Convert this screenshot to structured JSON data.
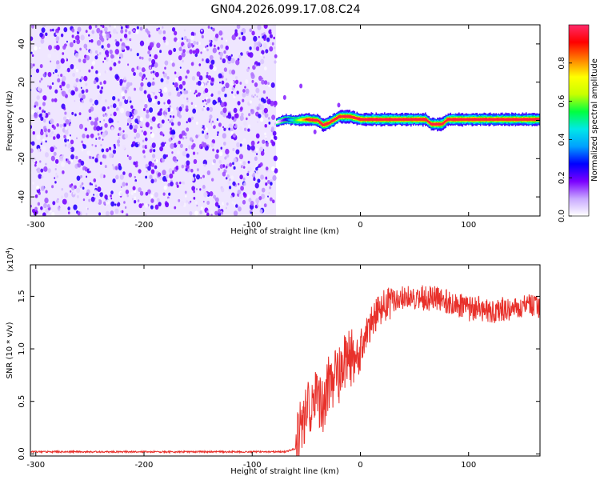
{
  "title": "GN04.2026.099.17.08.C24",
  "chart_data": [
    {
      "type": "heatmap",
      "xlabel": "Height of straight line (km)",
      "ylabel": "Frequency (Hz)",
      "xlim": [
        -305,
        166
      ],
      "ylim": [
        -50,
        50
      ],
      "xticks": [
        -300,
        -200,
        -100,
        0,
        100
      ],
      "xtick_labels": [
        "-300",
        "-200",
        "-100",
        "0",
        "100"
      ],
      "yticks": [
        -40,
        -20,
        0,
        20,
        40
      ],
      "ytick_labels": [
        "-40",
        "-20",
        "0",
        "20",
        "40"
      ],
      "colorbar": {
        "label": "Normalized spectral amplitude",
        "range": [
          0,
          1
        ],
        "ticks": [
          0.0,
          0.2,
          0.4,
          0.6,
          0.8
        ],
        "tick_labels": [
          "0.0",
          "0.2",
          "0.4",
          "0.6",
          "0.8"
        ],
        "colormap": [
          "#ffffff",
          "#c8a8ff",
          "#7a00ff",
          "#0000ff",
          "#00a0ff",
          "#00e8e8",
          "#00ff40",
          "#c8ff00",
          "#ffff00",
          "#ff8000",
          "#ff0000",
          "#ff2a6a"
        ]
      },
      "noise_region": {
        "x": [
          -305,
          -78
        ],
        "freq": [
          -50,
          50
        ],
        "amplitude": [
          0.0,
          0.25
        ]
      },
      "signal_track": {
        "x": [
          -78,
          -70,
          -60,
          -50,
          -40,
          -35,
          -30,
          -20,
          -10,
          0,
          20,
          40,
          60,
          65,
          75,
          80,
          100,
          120,
          140,
          166
        ],
        "freq": [
          -1,
          0.5,
          0,
          0.5,
          0,
          -2.5,
          -1.5,
          2,
          2,
          0.5,
          0.5,
          0.5,
          0.5,
          -2,
          -2,
          0.5,
          0.5,
          0.5,
          0.5,
          0.5
        ]
      },
      "grid": false
    },
    {
      "type": "line",
      "xlabel": "Height of straight line (km)",
      "ylabel": "SNR (10 * v/v)",
      "y_multiplier": "(x10^4)",
      "xlim": [
        -305,
        166
      ],
      "ylim": [
        -0.02,
        1.8
      ],
      "xticks": [
        -300,
        -200,
        -100,
        0,
        100
      ],
      "xtick_labels": [
        "-300",
        "-200",
        "-100",
        "0",
        "100"
      ],
      "yticks": [
        0.0,
        0.5,
        1.0,
        1.5
      ],
      "ytick_labels": [
        "0.0",
        "0.5",
        "1.0",
        "1.5"
      ],
      "color": "#e8312b",
      "series": [
        {
          "x": [
            -305,
            -250,
            -200,
            -150,
            -100,
            -70,
            -60,
            -55,
            -50,
            -45,
            -40,
            -35,
            -30,
            -25,
            -20,
            -15,
            -10,
            -5,
            0,
            10,
            20,
            30,
            40,
            50,
            60,
            70,
            80,
            90,
            100,
            110,
            120,
            130,
            140,
            150,
            160,
            166
          ],
          "values": [
            0.02,
            0.02,
            0.02,
            0.02,
            0.02,
            0.02,
            0.05,
            0.3,
            0.38,
            0.5,
            0.55,
            0.45,
            0.65,
            0.7,
            0.72,
            0.85,
            0.9,
            0.95,
            1.02,
            1.25,
            1.4,
            1.45,
            1.48,
            1.5,
            1.48,
            1.48,
            1.45,
            1.42,
            1.38,
            1.38,
            1.35,
            1.38,
            1.38,
            1.4,
            1.42,
            1.38
          ]
        }
      ],
      "grid": false
    }
  ]
}
